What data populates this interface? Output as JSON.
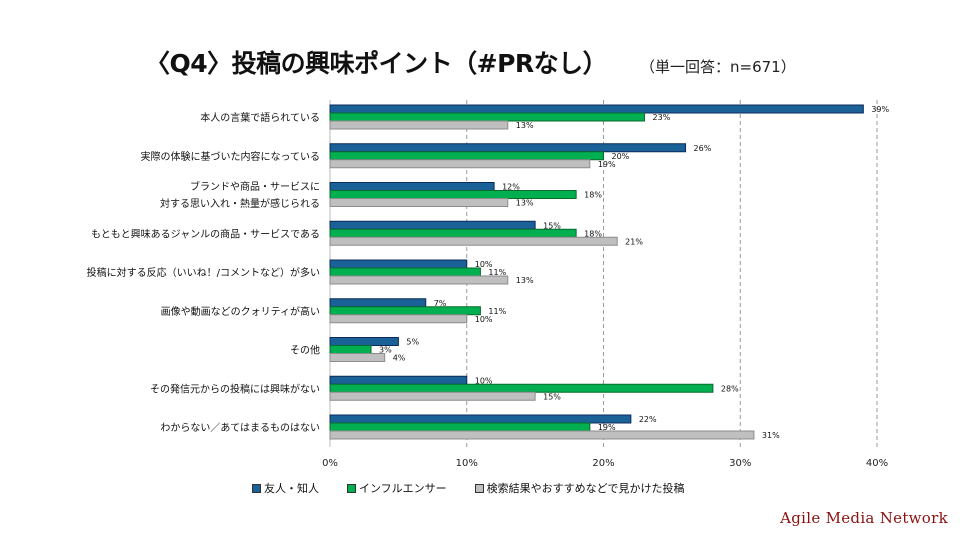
{
  "title": "〈Q4〉投稿の興味ポイント（#PRなし）",
  "subtitle": "（単一回答：n=671）",
  "brand": "Agile Media Network",
  "chart_data": {
    "type": "bar",
    "orientation": "horizontal",
    "categories": [
      [
        "本人の言葉で語られている"
      ],
      [
        "実際の体験に基づいた内容になっている"
      ],
      [
        "ブランドや商品・サービスに",
        "対する思い入れ・熱量が感じられる"
      ],
      [
        "もともと興味あるジャンルの商品・サービスである"
      ],
      [
        "投稿に対する反応（いいね！/コメントなど）が多い"
      ],
      [
        "画像や動画などのクォリティが高い"
      ],
      [
        "その他"
      ],
      [
        "その発信元からの投稿には興味がない"
      ],
      [
        "わからない／あてはまるものはない"
      ]
    ],
    "series": [
      {
        "name": "友人・知人",
        "color": "#1a6198",
        "border": "#0c2a5a",
        "values": [
          39,
          26,
          12,
          15,
          10,
          7,
          5,
          10,
          22
        ]
      },
      {
        "name": "インフルエンサー",
        "color": "#00b050",
        "border": "#0a6a2a",
        "values": [
          23,
          20,
          18,
          18,
          11,
          11,
          3,
          28,
          19
        ]
      },
      {
        "name": "検索結果やおすすめなどで見かけた投稿",
        "color": "#bfbfbf",
        "border": "#8c8c8c",
        "values": [
          13,
          19,
          13,
          21,
          13,
          10,
          4,
          15,
          31
        ]
      }
    ],
    "value_suffix": "%",
    "xlim": [
      0,
      40
    ],
    "xticks": [
      "0%",
      "10%",
      "20%",
      "30%",
      "40%"
    ],
    "grid": true,
    "legend_position": "bottom"
  }
}
